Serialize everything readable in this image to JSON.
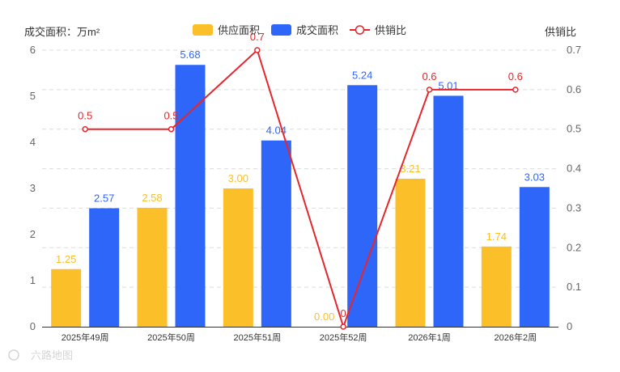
{
  "chart_data": {
    "type": "bar",
    "categories": [
      "2025年49周",
      "2025年50周",
      "2025年51周",
      "2025年52周",
      "2026年1周",
      "2026年2周"
    ],
    "series": [
      {
        "name": "供应面积",
        "type": "bar",
        "axis": "left",
        "color": "#FBBF2A",
        "values": [
          1.25,
          2.58,
          3.0,
          0.0,
          3.21,
          1.74
        ],
        "labels": [
          "1.25",
          "2.58",
          "3.00",
          "0.00",
          "3.21",
          "1.74"
        ]
      },
      {
        "name": "成交面积",
        "type": "bar",
        "axis": "left",
        "color": "#2F66FA",
        "values": [
          2.57,
          5.68,
          4.04,
          5.24,
          5.01,
          3.03
        ],
        "labels": [
          "2.57",
          "5.68",
          "4.04",
          "5.24",
          "5.01",
          "3.03"
        ]
      },
      {
        "name": "供销比",
        "type": "line",
        "axis": "right",
        "color": "#E5262C",
        "values": [
          0.5,
          0.5,
          0.7,
          0,
          0.6,
          0.6
        ],
        "labels": [
          "0.5",
          "0.5",
          "0.7",
          "0",
          "0.6",
          "0.6"
        ]
      }
    ],
    "ylabel_left": "成交面积：万m²",
    "ylabel_right": "供销比",
    "ylim_left": [
      0,
      6
    ],
    "yticks_left": [
      "0",
      "1",
      "2",
      "3",
      "4",
      "5",
      "6"
    ],
    "ylim_right": [
      0,
      0.7
    ],
    "yticks_right": [
      "0",
      "0.1",
      "0.2",
      "0.3",
      "0.4",
      "0.5",
      "0.6",
      "0.7"
    ],
    "grid": true,
    "legend_position": "top-center"
  },
  "watermark": {
    "text": "六路地图"
  }
}
